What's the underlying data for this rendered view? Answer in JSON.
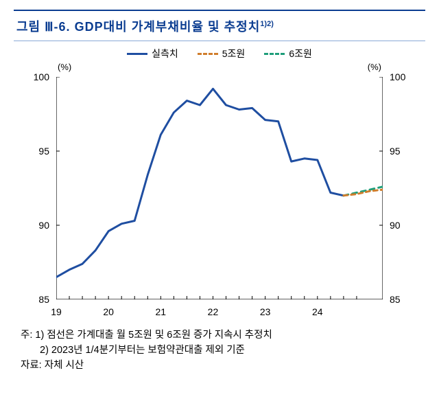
{
  "title": {
    "prefix": "그림 Ⅲ-6.",
    "main": "GDP대비 가계부채비율 및 추정치",
    "sup": "1)2)",
    "color": "#0b3d91",
    "border_top_color": "#0b3d91",
    "border_bottom_color": "#8aa9d6"
  },
  "legend": {
    "items": [
      {
        "label": "실측치",
        "color": "#1f4ea1",
        "dash": "solid"
      },
      {
        "label": "5조원",
        "color": "#d07d2c",
        "dash": "6,5"
      },
      {
        "label": "6조원",
        "color": "#1f9e7a",
        "dash": "7,6"
      }
    ]
  },
  "chart": {
    "type": "line",
    "background_color": "#ffffff",
    "x_categories": [
      "19",
      "20",
      "21",
      "22",
      "23",
      "24"
    ],
    "x_count_quarters": 24,
    "ylim": [
      85,
      100
    ],
    "yticks": [
      85,
      90,
      95,
      100
    ],
    "axis_unit_left": "(%)",
    "axis_unit_right": "(%)",
    "axis_color": "#000000",
    "line_width": 3,
    "series": {
      "actual": {
        "color": "#1f4ea1",
        "dash": "none",
        "data": [
          86.5,
          87.0,
          87.4,
          88.3,
          89.6,
          90.1,
          90.3,
          93.4,
          96.1,
          97.6,
          98.4,
          98.1,
          99.2,
          98.1,
          97.8,
          97.9,
          97.1,
          97.0,
          94.3,
          94.5,
          94.4,
          92.2,
          92.0
        ]
      },
      "proj5": {
        "color": "#d07d2c",
        "dash": "6,5",
        "data": [
          92.0,
          92.1,
          92.3,
          92.4
        ],
        "start_index": 22
      },
      "proj6": {
        "color": "#1f9e7a",
        "dash": "7,6",
        "data": [
          92.0,
          92.2,
          92.4,
          92.6
        ],
        "start_index": 22
      }
    }
  },
  "footnotes": {
    "line1": "주: 1) 점선은 가계대출 월 5조원 및 6조원 증가 지속시 추정치",
    "line2": "2) 2023년 1/4분기부터는 보험약관대출 제외 기준",
    "source": "자료: 자체 시산"
  }
}
